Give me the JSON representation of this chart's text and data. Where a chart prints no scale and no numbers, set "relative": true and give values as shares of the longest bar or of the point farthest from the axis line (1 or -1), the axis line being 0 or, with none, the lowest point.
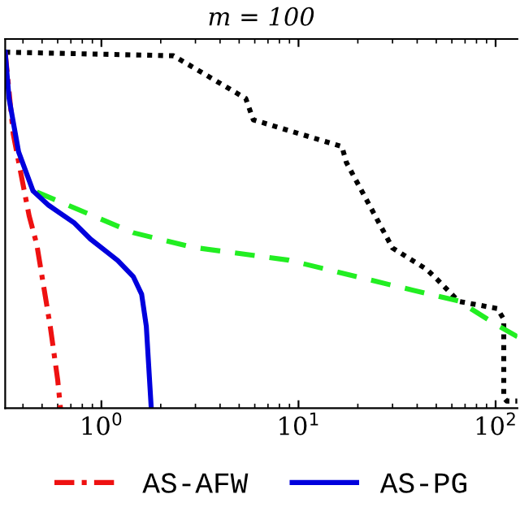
{
  "chart_data": {
    "type": "line",
    "title": "m = 100",
    "relative": true,
    "log": "x",
    "xlim": [
      0.325,
      129
    ],
    "xticks": [
      {
        "value": 1,
        "label": "10$^{0}$"
      },
      {
        "value": 10,
        "label": "10$^{1}$"
      },
      {
        "value": 100,
        "label": "10$^{2}$"
      }
    ],
    "tick_labels": "x",
    "legend": "bottom",
    "series": [
      {
        "color": "#000000",
        "line_style": "dotted",
        "x": [
          0.325,
          2.32,
          5.4,
          5.9,
          16.6,
          17.5,
          30,
          44.7,
          50.9,
          65,
          102,
          110,
          110,
          114,
          129
        ],
        "values": [
          1,
          0.99,
          0.87,
          0.81,
          0.735,
          0.69,
          0.45,
          0.39,
          0.36,
          0.3,
          0.28,
          0.25,
          0.03,
          0.02,
          0.02
        ]
      },
      {
        "color": "#22ee22",
        "line_style": "dashed",
        "x": [
          0.47,
          1.45,
          2.9,
          8.9,
          29,
          65,
          102,
          129
        ],
        "values": [
          0.607,
          0.493,
          0.452,
          0.416,
          0.347,
          0.301,
          0.233,
          0.201
        ]
      },
      {
        "name": "AS-AFW",
        "color": "#ee1111",
        "line_style": "dashdot",
        "x": [
          0.325,
          0.357,
          0.43,
          0.47,
          0.55,
          0.6,
          0.62
        ],
        "values": [
          1,
          0.77,
          0.54,
          0.46,
          0.23,
          0.08,
          0
        ]
      },
      {
        "name": "AS-PG",
        "color": "#0000dd",
        "line_style": "solid",
        "x": [
          0.325,
          0.34,
          0.38,
          0.45,
          0.54,
          0.73,
          0.88,
          1.06,
          1.21,
          1.45,
          1.6,
          1.69,
          1.79
        ],
        "values": [
          1,
          0.87,
          0.72,
          0.61,
          0.57,
          0.52,
          0.475,
          0.44,
          0.415,
          0.37,
          0.32,
          0.23,
          0
        ]
      }
    ]
  }
}
